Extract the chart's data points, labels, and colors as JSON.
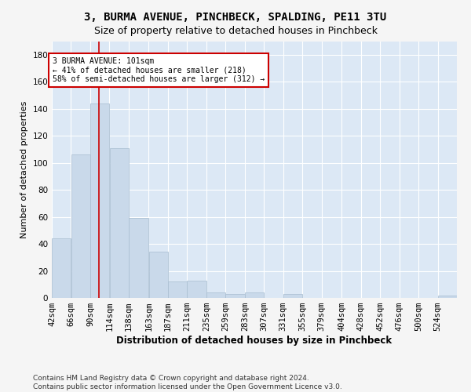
{
  "title1": "3, BURMA AVENUE, PINCHBECK, SPALDING, PE11 3TU",
  "title2": "Size of property relative to detached houses in Pinchbeck",
  "xlabel": "Distribution of detached houses by size in Pinchbeck",
  "ylabel": "Number of detached properties",
  "bar_color": "#c9d9ea",
  "bar_edge_color": "#a8bdd0",
  "marker_value": 101,
  "marker_color": "#cc0000",
  "annotation_text": "3 BURMA AVENUE: 101sqm\n← 41% of detached houses are smaller (218)\n58% of semi-detached houses are larger (312) →",
  "categories": [
    "42sqm",
    "66sqm",
    "90sqm",
    "114sqm",
    "138sqm",
    "163sqm",
    "187sqm",
    "211sqm",
    "235sqm",
    "259sqm",
    "283sqm",
    "307sqm",
    "331sqm",
    "355sqm",
    "379sqm",
    "404sqm",
    "428sqm",
    "452sqm",
    "476sqm",
    "500sqm",
    "524sqm"
  ],
  "values": [
    44,
    106,
    144,
    111,
    59,
    34,
    12,
    13,
    4,
    3,
    4,
    0,
    3,
    0,
    0,
    0,
    0,
    0,
    0,
    0,
    2
  ],
  "bin_edges": [
    42,
    66,
    90,
    114,
    138,
    163,
    187,
    211,
    235,
    259,
    283,
    307,
    331,
    355,
    379,
    404,
    428,
    452,
    476,
    500,
    524,
    548
  ],
  "ylim": [
    0,
    190
  ],
  "yticks": [
    0,
    20,
    40,
    60,
    80,
    100,
    120,
    140,
    160,
    180
  ],
  "background_color": "#dce8f5",
  "fig_background": "#f5f5f5",
  "footer_text": "Contains HM Land Registry data © Crown copyright and database right 2024.\nContains public sector information licensed under the Open Government Licence v3.0.",
  "annotation_box_color": "#ffffff",
  "annotation_box_edge": "#cc0000",
  "grid_color": "#ffffff",
  "title1_fontsize": 10,
  "title2_fontsize": 9,
  "xlabel_fontsize": 8.5,
  "ylabel_fontsize": 8,
  "tick_fontsize": 7.5,
  "footer_fontsize": 6.5
}
